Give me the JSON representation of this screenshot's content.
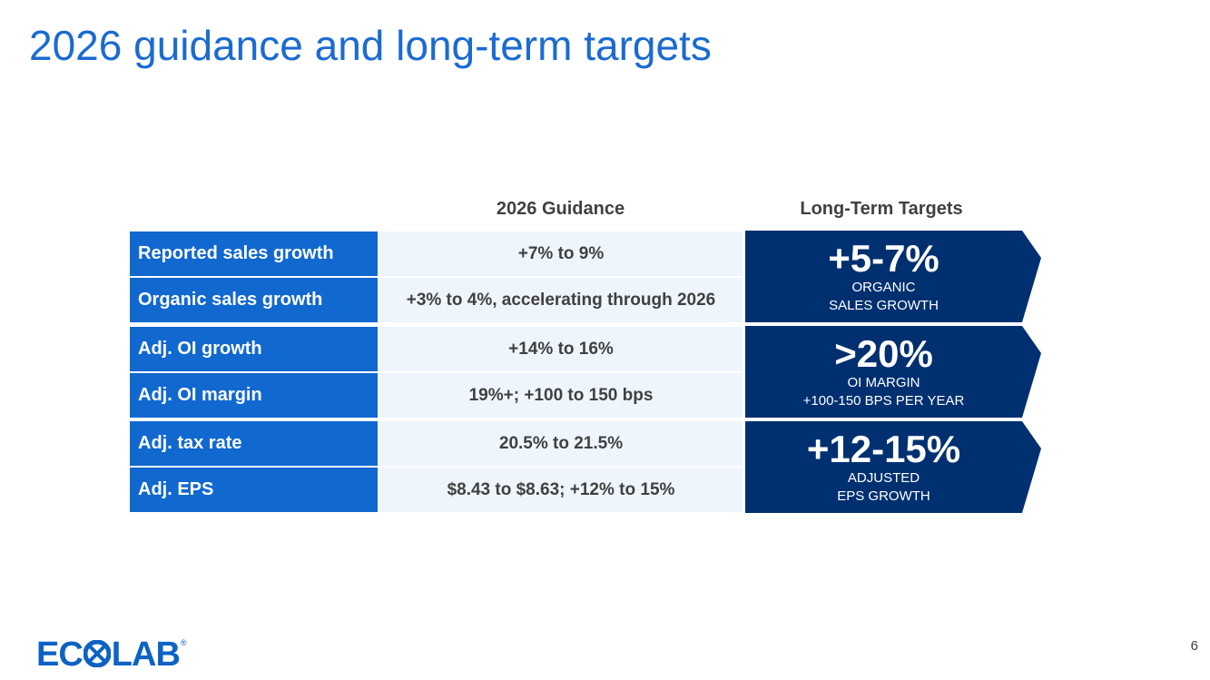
{
  "slide": {
    "title": "2026 guidance and long-term targets",
    "page_number": "6"
  },
  "table": {
    "headers": {
      "guidance": "2026 Guidance",
      "long_term": "Long-Term Targets"
    },
    "rows": [
      {
        "label": "Reported sales growth",
        "value": "+7% to 9%"
      },
      {
        "label": "Organic sales growth",
        "value": "+3% to 4%, accelerating through 2026"
      },
      {
        "label": "Adj. OI growth",
        "value": "+14% to 16%"
      },
      {
        "label": "Adj. OI margin",
        "value": "19%+; +100 to 150 bps"
      },
      {
        "label": "Adj. tax rate",
        "value": "20.5% to 21.5%"
      },
      {
        "label": "Adj. EPS",
        "value": "$8.43 to $8.63; +12% to 15%"
      }
    ]
  },
  "targets": [
    {
      "big": "+5-7%",
      "line1": "ORGANIC",
      "line2": "SALES GROWTH"
    },
    {
      "big": ">20%",
      "line1": "OI MARGIN",
      "line2": "+100-150 BPS PER YEAR"
    },
    {
      "big": "+12-15%",
      "line1": "ADJUSTED",
      "line2": "EPS GROWTH"
    }
  ],
  "logo": {
    "part1": "EC",
    "part2": "LAB",
    "registered": "®"
  },
  "colors": {
    "title": "#1a6bd1",
    "label_bg": "#1168cf",
    "value_bg": "#eef5fc",
    "target_bg": "#003070",
    "logo": "#0d62c4"
  }
}
